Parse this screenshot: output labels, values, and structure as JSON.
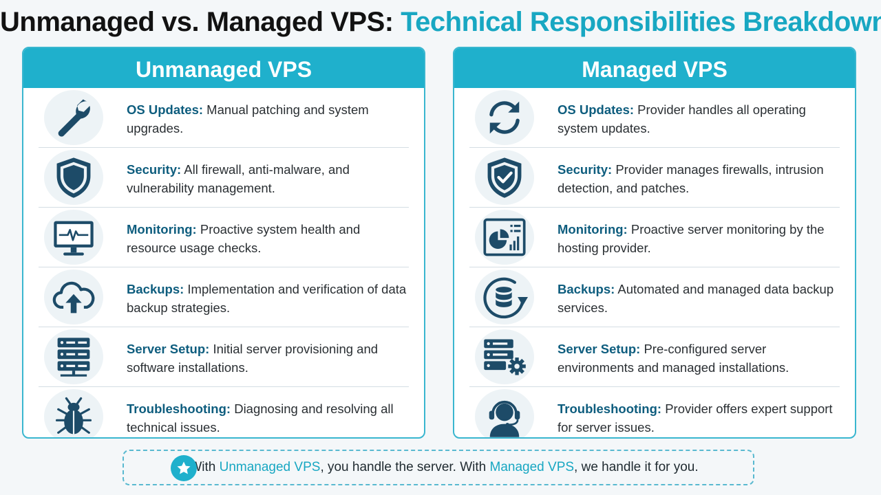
{
  "title": {
    "part1": "Unmanaged vs. Managed VPS:",
    "part2": "Technical Responsibilities Breakdown"
  },
  "colors": {
    "accent": "#1fb0cc",
    "icon": "#1d4b68",
    "title_dark": "#121212"
  },
  "left": {
    "header": "Unmanaged VPS",
    "rows": [
      {
        "icon": "wrench-icon",
        "title": "OS Updates:",
        "text": "Manual patching and system upgrades."
      },
      {
        "icon": "shield-icon",
        "title": "Security:",
        "text": "All firewall, anti-malware, and vulnerability management."
      },
      {
        "icon": "monitor-heartbeat-icon",
        "title": "Monitoring:",
        "text": "Proactive system health and resource usage checks."
      },
      {
        "icon": "cloud-upload-icon",
        "title": "Backups:",
        "text": "Implementation and verification of data backup strategies."
      },
      {
        "icon": "server-rack-icon",
        "title": "Server Setup:",
        "text": "Initial server provisioning and software installations."
      },
      {
        "icon": "bug-icon",
        "title": "Troubleshooting:",
        "text": "Diagnosing and resolving all technical issues."
      }
    ]
  },
  "right": {
    "header": "Managed VPS",
    "rows": [
      {
        "icon": "sync-arrows-icon",
        "title": "OS Updates:",
        "text": "Provider handles all operating system updates."
      },
      {
        "icon": "shield-check-icon",
        "title": "Security:",
        "text": "Provider manages firewalls, intrusion detection, and patches."
      },
      {
        "icon": "dashboard-chart-icon",
        "title": "Monitoring:",
        "text": "Proactive server monitoring by the hosting provider."
      },
      {
        "icon": "database-refresh-icon",
        "title": "Backups:",
        "text": "Automated and managed data backup services."
      },
      {
        "icon": "server-gear-icon",
        "title": "Server Setup:",
        "text": "Pre-configured server environments and managed installations."
      },
      {
        "icon": "support-headset-icon",
        "title": "Troubleshooting:",
        "text": "Provider offers expert support for server issues."
      }
    ]
  },
  "footer": {
    "icon": "star-icon",
    "prefix": "With",
    "unmanaged": "Unmanaged VPS",
    "middle": ", you handle the server. With",
    "managed": "Managed VPS",
    "suffix": ", we handle it for you."
  }
}
